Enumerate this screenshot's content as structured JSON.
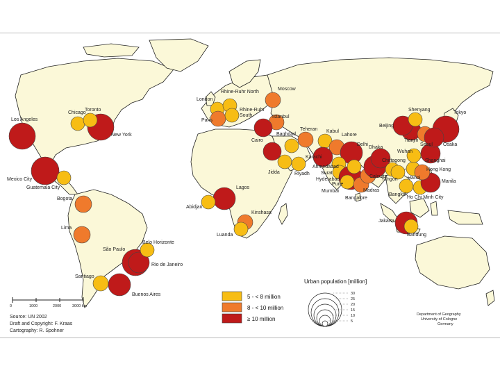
{
  "map": {
    "colors": {
      "land": "#fbf8d8",
      "water": "#ffffff",
      "border": "#222222",
      "c_small": "#f7bd14",
      "c_mid": "#ef7a2c",
      "c_large": "#bf1a1a"
    },
    "cities": [
      {
        "name": "Los Angeles",
        "cls": "large"
      },
      {
        "name": "Chicago",
        "cls": "small"
      },
      {
        "name": "Toronto",
        "cls": "small"
      },
      {
        "name": "New York",
        "cls": "large"
      },
      {
        "name": "Mexico City",
        "cls": "large"
      },
      {
        "name": "Guatemala City",
        "cls": "small"
      },
      {
        "name": "Bogotá",
        "cls": "mid"
      },
      {
        "name": "Lima",
        "cls": "mid"
      },
      {
        "name": "Belo Horizonte",
        "cls": "small"
      },
      {
        "name": "São Paulo",
        "cls": "large"
      },
      {
        "name": "Rio de Janeiro",
        "cls": "large"
      },
      {
        "name": "Santiago",
        "cls": "small"
      },
      {
        "name": "Buenos Aires",
        "cls": "large"
      },
      {
        "name": "London",
        "cls": "small"
      },
      {
        "name": "Paris",
        "cls": "mid"
      },
      {
        "name": "Rhine-Ruhr North",
        "cls": "small"
      },
      {
        "name": "Rhine-Ruhr South",
        "cls": "small"
      },
      {
        "name": "Moscow",
        "cls": "mid"
      },
      {
        "name": "Istanbul",
        "cls": "mid"
      },
      {
        "name": "Cairo",
        "cls": "large"
      },
      {
        "name": "Baghdad",
        "cls": "small"
      },
      {
        "name": "Tehran",
        "cls": "mid"
      },
      {
        "name": "Jidda",
        "cls": "small"
      },
      {
        "name": "Riyadh",
        "cls": "small"
      },
      {
        "name": "Lagos",
        "cls": "large"
      },
      {
        "name": "Abidjan",
        "cls": "small"
      },
      {
        "name": "Kinshasa",
        "cls": "mid"
      },
      {
        "name": "Luanda",
        "cls": "small"
      },
      {
        "name": "Kabul",
        "cls": "small"
      },
      {
        "name": "Lahore",
        "cls": "mid"
      },
      {
        "name": "Karachi",
        "cls": "large"
      },
      {
        "name": "Delhi",
        "cls": "large"
      },
      {
        "name": "Ahmedabad",
        "cls": "small"
      },
      {
        "name": "Surat",
        "cls": "small"
      },
      {
        "name": "Mumbai",
        "cls": "large"
      },
      {
        "name": "Pune",
        "cls": "small"
      },
      {
        "name": "Hyderabad",
        "cls": "small"
      },
      {
        "name": "Bangalore",
        "cls": "mid"
      },
      {
        "name": "Madras",
        "cls": "mid"
      },
      {
        "name": "Calcutta",
        "cls": "large"
      },
      {
        "name": "Dhaka",
        "cls": "large"
      },
      {
        "name": "Chittagong",
        "cls": "small"
      },
      {
        "name": "Yangon",
        "cls": "small"
      },
      {
        "name": "Bangkok",
        "cls": "small"
      },
      {
        "name": "Hanoi",
        "cls": "small"
      },
      {
        "name": "Ho Chi Minh City",
        "cls": "small"
      },
      {
        "name": "Jakarta",
        "cls": "large"
      },
      {
        "name": "Bandung",
        "cls": "small"
      },
      {
        "name": "Manila",
        "cls": "large"
      },
      {
        "name": "Hong Kong",
        "cls": "mid"
      },
      {
        "name": "Wuhan",
        "cls": "small"
      },
      {
        "name": "Shanghai",
        "cls": "large"
      },
      {
        "name": "Tianjin",
        "cls": "large"
      },
      {
        "name": "Beijing",
        "cls": "large"
      },
      {
        "name": "Shenyang",
        "cls": "small"
      },
      {
        "name": "Seoul",
        "cls": "mid"
      },
      {
        "name": "Tokyo",
        "cls": "large"
      },
      {
        "name": "Osaka",
        "cls": "large"
      }
    ]
  },
  "labels": {
    "los_angeles": "Los Angeles",
    "chicago": "Chicago",
    "toronto": "Toronto",
    "new_york": "New York",
    "mexico_city": "Mexico City",
    "guatemala": "Guatemala City",
    "bogota": "Bogota",
    "lima": "Lima",
    "belo": "Belo Horizonte",
    "sao_paulo": "São Paulo",
    "rio": "Rio de Janeiro",
    "santiago": "Santiago",
    "buenos_aires": "Buenos Aires",
    "london": "London",
    "paris": "Paris",
    "rhine_north": "Rhine-Ruhr North",
    "rhine_south": "Rhine-Ruhr",
    "south": "South",
    "moscow": "Moscow",
    "istanbul": "Istanbul",
    "cairo": "Cairo",
    "baghdad": "Baghdad",
    "tehran": "Teheran",
    "jidda": "Jidda",
    "riyadh": "Riyadh",
    "lagos": "Lagos",
    "abidjan": "Abidjan",
    "kinshasa": "Kinshasa",
    "luanda": "Luanda",
    "kabul": "Kabul",
    "lahore": "Lahore",
    "karachi": "Karachi",
    "delhi": "Delhi",
    "ahmedabad": "Ahmedabad",
    "surat": "Surat",
    "mumbai": "Mumbai",
    "pune": "Pune",
    "hyderabad": "Hyderabad",
    "bangalore": "Bangalore",
    "madras": "Madras",
    "calcutta": "Calcutta",
    "dhaka": "Dhaka",
    "chittagong": "Chittagong",
    "yangon": "Yangon",
    "bangkok": "Bangkok",
    "hanoi": "Hanoi",
    "hcmc": "Ho Chi Minh City",
    "jakarta": "Jakarta",
    "bandung": "Bandung",
    "manila": "Manila",
    "hong_kong": "Hong Kong",
    "wuhan": "Wuhan",
    "shanghai": "Shanghai",
    "tianjin": "Tianjin",
    "beijing": "Beijing",
    "shenyang": "Shenyang",
    "seoul": "Seoul",
    "tokyo": "Tokyo",
    "osaka": "Osaka"
  },
  "legend": {
    "class_small": "5 - < 8 million",
    "class_mid": "8 - < 10 million",
    "class_large": "≥ 10 million",
    "size_title": "Urban population [million]",
    "size_values": [
      "30",
      "25",
      "20",
      "15",
      "10",
      "5"
    ]
  },
  "scalebar": {
    "ticks": [
      "0",
      "1000",
      "2000",
      "3000 km"
    ]
  },
  "credits": {
    "line1": "Source: UN 2002",
    "line2": "Draft and Copyright: F. Kraas",
    "line3": "Cartography: R. Spohner",
    "inst1": "Department of Geography",
    "inst2": "University of Cologne",
    "inst3": "Germany"
  }
}
